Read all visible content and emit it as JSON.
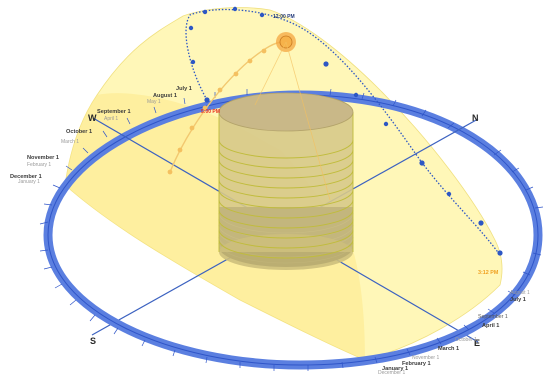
{
  "diagram": {
    "directions": {
      "north": "N",
      "west": "W",
      "south": "S",
      "east": "E"
    },
    "time_labels": {
      "noon": "12:00 PM",
      "sunset": "3:12 PM",
      "sunrise_mark": "5:00 PM"
    },
    "left_date_labels": [
      {
        "primary": "September 1",
        "secondary": "April 1"
      },
      {
        "primary": "August 1",
        "secondary": "May 1"
      },
      {
        "primary": "July 1",
        "secondary": ""
      },
      {
        "primary": "October 1",
        "secondary": "March 1"
      },
      {
        "primary": "November 1",
        "secondary": "February 1"
      },
      {
        "primary": "December 1",
        "secondary": "January 1"
      }
    ],
    "right_date_labels": [
      {
        "primary": "July 1",
        "secondary": "August 1"
      },
      {
        "primary": "September 1",
        "secondary": "April 1"
      },
      {
        "primary": "October 1",
        "secondary": "March 1"
      },
      {
        "primary": "February 1",
        "secondary": "November 1"
      },
      {
        "primary": "December 1",
        "secondary": "January 1"
      }
    ],
    "colors": {
      "ring": "#5b7fe0",
      "ring_dark": "#2f55c8",
      "axis": "#3c62c0",
      "sun_surface": "#fff6b0",
      "sun_path": "#2d57c4",
      "sun_marker": "#f4a640",
      "building": "#d7c98a",
      "building_lines": "#c0bc3c"
    }
  }
}
